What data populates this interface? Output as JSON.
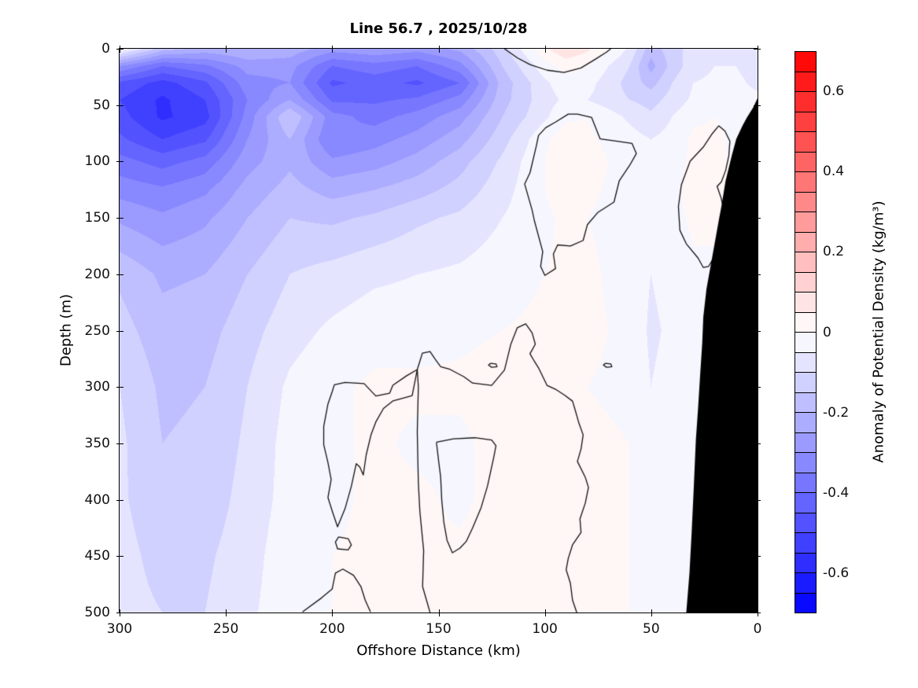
{
  "title": "Line 56.7 , 2025/10/28",
  "xlabel": "Offshore Distance (km)",
  "ylabel": "Depth (m)",
  "colorbar": {
    "label": "Anomaly of Potential Density (kg/m³)",
    "tick_labels": [
      "0.6",
      "0.4",
      "0.2",
      "0",
      "-0.2",
      "-0.4",
      "-0.6"
    ],
    "tick_values": [
      0.6,
      0.4,
      0.2,
      0,
      -0.2,
      -0.4,
      -0.6
    ],
    "vmin": -0.7,
    "vmax": 0.7,
    "n_segments": 28,
    "negative_color": "#0000ff",
    "positive_color": "#ff0000",
    "zero_color": "#ffffff"
  },
  "chart_data": {
    "type": "heatmap",
    "title": "Line 56.7 , 2025/10/28",
    "xlabel": "Offshore Distance (km)",
    "ylabel": "Depth (m)",
    "x_axis_reversed": true,
    "xlim": [
      300,
      0
    ],
    "ylim": [
      0,
      500
    ],
    "x_ticks": [
      300,
      250,
      200,
      150,
      100,
      50,
      0
    ],
    "y_ticks": [
      0,
      50,
      100,
      150,
      200,
      250,
      300,
      350,
      400,
      450,
      500
    ],
    "x_tick_labels": [
      "300",
      "250",
      "200",
      "150",
      "100",
      "50",
      "0"
    ],
    "y_tick_labels": [
      "0",
      "50",
      "100",
      "150",
      "200",
      "250",
      "300",
      "350",
      "400",
      "450",
      "500"
    ],
    "value_name": "Anomaly of Potential Density (kg/m³)",
    "contour_interval": 0.05,
    "vmin": -0.7,
    "vmax": 0.7,
    "x_km": [
      300,
      280,
      260,
      240,
      220,
      200,
      180,
      160,
      140,
      120,
      100,
      90,
      80,
      60,
      50,
      40,
      30,
      20,
      10,
      0
    ],
    "depth_m": [
      0,
      15,
      30,
      45,
      60,
      80,
      100,
      125,
      150,
      200,
      250,
      300,
      350,
      400,
      450,
      500
    ],
    "values": [
      [
        -0.02,
        -0.18,
        -0.22,
        -0.2,
        -0.22,
        -0.28,
        -0.26,
        -0.28,
        -0.24,
        -0.12,
        0.04,
        0.09,
        0.06,
        -0.06,
        -0.18,
        -0.12,
        -0.08,
        -0.06,
        -0.05,
        -0.05
      ],
      [
        -0.3,
        -0.4,
        -0.36,
        -0.28,
        -0.28,
        -0.4,
        -0.37,
        -0.4,
        -0.32,
        -0.15,
        -0.02,
        0.02,
        0.0,
        -0.1,
        -0.22,
        -0.13,
        -0.07,
        -0.05,
        -0.05,
        -0.07
      ],
      [
        -0.46,
        -0.52,
        -0.46,
        -0.32,
        -0.3,
        -0.46,
        -0.43,
        -0.46,
        -0.4,
        -0.18,
        -0.06,
        -0.02,
        -0.03,
        -0.12,
        -0.17,
        -0.1,
        -0.05,
        -0.04,
        -0.04,
        -0.06
      ],
      [
        -0.5,
        -0.56,
        -0.5,
        -0.35,
        -0.25,
        -0.41,
        -0.41,
        -0.39,
        -0.33,
        -0.17,
        -0.07,
        -0.04,
        -0.05,
        -0.1,
        -0.12,
        -0.08,
        -0.04,
        -0.03,
        -0.03,
        -0.04
      ],
      [
        -0.48,
        -0.56,
        -0.52,
        -0.33,
        -0.15,
        -0.33,
        -0.37,
        -0.33,
        -0.27,
        -0.15,
        -0.06,
        -0.01,
        0.0,
        -0.06,
        -0.09,
        -0.05,
        -0.01,
        0.0,
        -0.01,
        -0.02
      ],
      [
        -0.44,
        -0.5,
        -0.46,
        -0.3,
        -0.2,
        -0.35,
        -0.32,
        -0.28,
        -0.22,
        -0.12,
        -0.01,
        0.03,
        0.01,
        -0.03,
        -0.05,
        -0.03,
        0.01,
        0.01,
        -0.01,
        -0.02
      ],
      [
        -0.38,
        -0.42,
        -0.38,
        -0.27,
        -0.21,
        -0.29,
        -0.27,
        -0.23,
        -0.17,
        -0.09,
        0.0,
        0.05,
        0.02,
        -0.02,
        -0.04,
        -0.02,
        0.01,
        0.02,
        -0.01,
        -0.01
      ],
      [
        -0.32,
        -0.34,
        -0.31,
        -0.23,
        -0.18,
        -0.22,
        -0.2,
        -0.17,
        -0.13,
        -0.07,
        0.0,
        0.03,
        0.01,
        -0.02,
        -0.03,
        -0.01,
        0.02,
        0.01,
        -0.01,
        -0.01
      ],
      [
        -0.26,
        -0.29,
        -0.26,
        -0.2,
        -0.15,
        -0.16,
        -0.14,
        -0.11,
        -0.09,
        -0.05,
        -0.01,
        0.01,
        0.0,
        -0.02,
        -0.03,
        -0.02,
        0.01,
        0.01,
        -0.01,
        -0.01
      ],
      [
        -0.16,
        -0.21,
        -0.2,
        -0.15,
        -0.1,
        -0.08,
        -0.06,
        -0.05,
        -0.04,
        -0.02,
        0.0,
        0.01,
        0.01,
        -0.02,
        -0.05,
        -0.03,
        -0.01,
        -0.01,
        -0.01,
        -0.01
      ],
      [
        -0.13,
        -0.18,
        -0.17,
        -0.12,
        -0.07,
        -0.04,
        -0.02,
        -0.02,
        -0.01,
        0.0,
        0.01,
        0.01,
        0.01,
        -0.01,
        -0.06,
        -0.04,
        -0.01,
        0.0,
        -0.01,
        -0.01
      ],
      [
        -0.1,
        -0.16,
        -0.15,
        -0.1,
        -0.04,
        -0.01,
        0.01,
        0.01,
        0.01,
        0.02,
        0.01,
        0.01,
        0.0,
        -0.01,
        -0.05,
        -0.03,
        -0.01,
        0.0,
        0.0,
        -0.01
      ],
      [
        -0.09,
        -0.15,
        -0.14,
        -0.09,
        -0.03,
        -0.01,
        0.01,
        -0.01,
        -0.01,
        0.02,
        0.02,
        0.01,
        0.01,
        0.0,
        -0.02,
        -0.02,
        -0.01,
        0.0,
        0.0,
        0.0
      ],
      [
        -0.09,
        -0.14,
        -0.13,
        -0.08,
        -0.03,
        -0.01,
        0.01,
        0.01,
        -0.01,
        0.02,
        0.02,
        0.01,
        0.01,
        0.0,
        -0.01,
        -0.01,
        0.0,
        0.0,
        0.0,
        0.0
      ],
      [
        -0.08,
        -0.12,
        -0.11,
        -0.07,
        -0.02,
        0.0,
        0.01,
        0.01,
        0.01,
        0.02,
        0.01,
        0.01,
        0.01,
        0.0,
        -0.01,
        0.0,
        0.0,
        0.0,
        0.0,
        0.0
      ],
      [
        -0.08,
        -0.1,
        -0.1,
        -0.06,
        -0.02,
        0.0,
        0.01,
        0.01,
        0.01,
        0.02,
        0.01,
        0.01,
        0.0,
        0.0,
        -0.01,
        0.0,
        0.0,
        0.0,
        0.0,
        0.0
      ]
    ],
    "zero_contours_km_depth": [
      [
        [
          119,
          0
        ],
        [
          113,
          8
        ],
        [
          107,
          14
        ],
        [
          99,
          19
        ],
        [
          91,
          21
        ],
        [
          83,
          17
        ],
        [
          76,
          9
        ],
        [
          71,
          3
        ],
        [
          69,
          0
        ]
      ],
      [
        [
          84.7,
          58
        ],
        [
          78,
          61
        ],
        [
          74,
          80
        ],
        [
          66,
          82
        ],
        [
          59,
          84
        ],
        [
          57,
          93
        ],
        [
          60,
          103
        ],
        [
          65,
          117
        ],
        [
          67.5,
          136
        ],
        [
          75,
          145
        ],
        [
          80,
          156
        ],
        [
          82,
          170
        ],
        [
          88,
          175
        ],
        [
          94,
          174
        ],
        [
          96,
          182
        ],
        [
          95,
          195
        ],
        [
          100,
          201
        ],
        [
          102,
          193
        ],
        [
          101,
          180
        ],
        [
          105,
          152
        ],
        [
          106,
          143
        ],
        [
          109.5,
          120
        ],
        [
          107,
          110
        ],
        [
          104,
          86
        ],
        [
          103,
          77
        ],
        [
          99.6,
          70
        ],
        [
          95,
          65
        ],
        [
          89,
          58
        ],
        [
          84.7,
          58
        ]
      ],
      [
        [
          18.2,
          68.3
        ],
        [
          15.3,
          73
        ],
        [
          13,
          82
        ],
        [
          13.5,
          95
        ],
        [
          15,
          108
        ],
        [
          17,
          118
        ],
        [
          19,
          122
        ],
        [
          17.1,
          132.5
        ],
        [
          16,
          142
        ],
        [
          16.5,
          158
        ],
        [
          18,
          172
        ],
        [
          20.5,
          185
        ],
        [
          23,
          193
        ],
        [
          25.5,
          194
        ],
        [
          28,
          185.5
        ],
        [
          33.5,
          173
        ],
        [
          36.5,
          161
        ],
        [
          37.2,
          140
        ],
        [
          35.8,
          120.6
        ],
        [
          31.7,
          99.7
        ],
        [
          25.5,
          87.2
        ],
        [
          21.3,
          75.3
        ],
        [
          18.2,
          68.3
        ]
      ],
      [
        [
          154,
          500
        ],
        [
          157.5,
          477
        ],
        [
          157,
          445
        ],
        [
          158.8,
          410
        ],
        [
          159.5,
          385
        ],
        [
          160,
          340
        ],
        [
          159.5,
          300
        ],
        [
          160,
          284.5
        ],
        [
          157.6,
          270
        ],
        [
          154,
          268.5
        ],
        [
          151.5,
          275.5
        ],
        [
          149,
          282
        ],
        [
          145,
          284
        ],
        [
          138,
          291
        ],
        [
          134,
          296.5
        ],
        [
          125,
          298.5
        ],
        [
          119,
          285
        ],
        [
          116,
          262
        ],
        [
          113,
          247.5
        ],
        [
          109,
          244
        ],
        [
          106,
          252
        ],
        [
          104.5,
          262
        ],
        [
          107,
          270.5
        ],
        [
          105,
          277
        ],
        [
          103,
          283
        ],
        [
          99,
          298.5
        ],
        [
          95,
          302
        ],
        [
          90.5,
          307.5
        ],
        [
          87,
          312.5
        ],
        [
          85.5,
          322
        ],
        [
          84,
          332
        ],
        [
          82,
          342.5
        ],
        [
          83,
          355
        ],
        [
          84.7,
          366
        ],
        [
          81,
          380
        ],
        [
          79.5,
          389
        ],
        [
          81,
          403
        ],
        [
          83.5,
          417
        ],
        [
          83,
          429
        ],
        [
          87,
          440
        ],
        [
          89,
          452
        ],
        [
          90,
          462
        ],
        [
          88,
          474
        ],
        [
          87,
          489
        ],
        [
          85,
          500
        ]
      ],
      [
        [
          160,
          284.5
        ],
        [
          162.4,
          307.6
        ],
        [
          167,
          310
        ],
        [
          171.5,
          312.4
        ],
        [
          175.9,
          319
        ],
        [
          179.5,
          331
        ],
        [
          181.7,
          342
        ],
        [
          184,
          360
        ],
        [
          185.4,
          378
        ],
        [
          187,
          371
        ],
        [
          188.7,
          368
        ],
        [
          191,
          388
        ],
        [
          194,
          408
        ],
        [
          197.5,
          424
        ],
        [
          200,
          410
        ],
        [
          202,
          398
        ],
        [
          200.5,
          382
        ],
        [
          202,
          367
        ],
        [
          204,
          351
        ],
        [
          204,
          335
        ],
        [
          202,
          315
        ],
        [
          200,
          304
        ],
        [
          199,
          298
        ],
        [
          194,
          296
        ],
        [
          185,
          297
        ],
        [
          179.5,
          308
        ],
        [
          173,
          305.5
        ],
        [
          171.5,
          298.5
        ],
        [
          165,
          290
        ],
        [
          160,
          284.5
        ]
      ],
      [
        [
          151,
          349
        ],
        [
          143,
          346
        ],
        [
          133,
          345
        ],
        [
          125,
          347
        ],
        [
          123,
          352
        ],
        [
          124,
          362
        ],
        [
          127,
          388
        ],
        [
          130,
          407
        ],
        [
          134,
          425
        ],
        [
          137,
          437
        ],
        [
          140,
          443
        ],
        [
          143.5,
          447
        ],
        [
          146,
          436
        ],
        [
          147.5,
          420
        ],
        [
          148.5,
          400
        ],
        [
          149,
          380
        ],
        [
          150,
          365
        ],
        [
          151,
          349
        ]
      ],
      [
        [
          214,
          499.5
        ],
        [
          205,
          487
        ],
        [
          200,
          479
        ],
        [
          198.5,
          465
        ],
        [
          195,
          461.5
        ],
        [
          190,
          467
        ],
        [
          186.5,
          477
        ],
        [
          184.5,
          489
        ],
        [
          182,
          499.5
        ]
      ],
      [
        [
          197,
          433
        ],
        [
          192.5,
          434.5
        ],
        [
          191,
          440
        ],
        [
          192.5,
          444.5
        ],
        [
          197.5,
          443.5
        ],
        [
          198.5,
          437.5
        ],
        [
          197,
          433
        ]
      ],
      [
        [
          125.5,
          279
        ],
        [
          123,
          279.5
        ],
        [
          122.5,
          282
        ],
        [
          125,
          282.5
        ],
        [
          126.5,
          280.5
        ],
        [
          125.5,
          279
        ]
      ],
      [
        [
          71.5,
          279
        ],
        [
          69,
          279.5
        ],
        [
          68.5,
          282
        ],
        [
          71,
          282.5
        ],
        [
          72.5,
          280.5
        ],
        [
          71.5,
          279
        ]
      ]
    ],
    "bathymetry_mask_km_depth": [
      [
        0,
        44
      ],
      [
        2,
        52
      ],
      [
        5,
        61
      ],
      [
        7,
        68
      ],
      [
        10,
        80
      ],
      [
        12,
        94
      ],
      [
        15,
        117
      ],
      [
        17,
        140
      ],
      [
        18,
        150
      ],
      [
        20,
        171
      ],
      [
        22,
        192
      ],
      [
        24,
        213
      ],
      [
        25.5,
        238
      ],
      [
        26,
        261
      ],
      [
        27,
        290
      ],
      [
        28,
        320
      ],
      [
        29,
        347
      ],
      [
        30,
        390
      ],
      [
        31,
        430
      ],
      [
        32,
        465
      ],
      [
        33.5,
        500
      ],
      [
        0,
        500
      ]
    ],
    "bathymetry_color": "#000000",
    "contour_line_color": "#111111"
  }
}
